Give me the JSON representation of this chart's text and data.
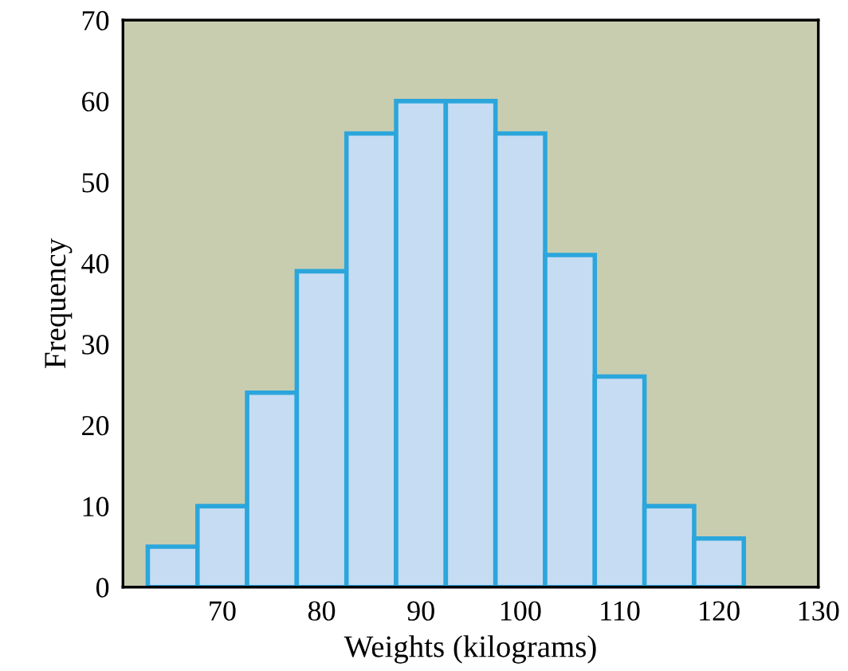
{
  "chart_data": {
    "type": "histogram",
    "xlabel": "Weights (kilograms)",
    "ylabel": "Frequency",
    "bins": [
      62.5,
      67.5,
      72.5,
      77.5,
      82.5,
      87.5,
      92.5,
      97.5,
      102.5,
      107.5,
      112.5,
      117.5,
      122.5
    ],
    "values": [
      5,
      10,
      24,
      39,
      56,
      60,
      60,
      56,
      41,
      26,
      10,
      6
    ],
    "color": "#c6dcf2",
    "xlim": [
      60,
      130
    ],
    "xticks": [
      70,
      80,
      90,
      100,
      110,
      120,
      130
    ],
    "ylim": [
      0,
      70
    ],
    "yticks": [
      0,
      10,
      20,
      30,
      40,
      50,
      60,
      70
    ],
    "grid": false
  }
}
